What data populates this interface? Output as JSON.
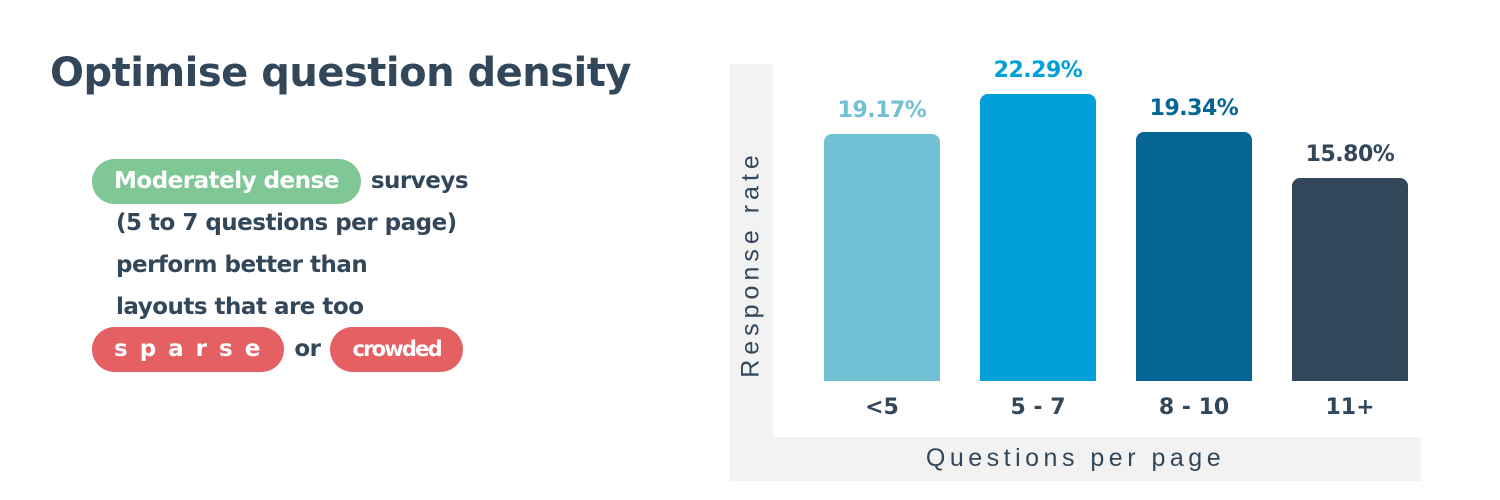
{
  "title": "Optimise question density",
  "description": {
    "highlight_good": "Moderately dense",
    "line1_rest": "surveys",
    "line2": "(5 to 7 questions per page)",
    "line3": "perform better than",
    "line4": "layouts that are too",
    "highlight_bad_1": "sparse",
    "connector": "or",
    "highlight_bad_2": "crowded"
  },
  "colors": {
    "text": "#33475b",
    "good_pill": "#7fc795",
    "bad_pill": "#e46063",
    "axis_band": "#f2f2f2"
  },
  "chart_data": {
    "type": "bar",
    "title": "",
    "xlabel": "Questions per page",
    "ylabel": "Response rate",
    "categories": [
      "<5",
      "5 - 7",
      "8 - 10",
      "11+"
    ],
    "values": [
      19.17,
      22.29,
      19.34,
      15.8
    ],
    "value_labels": [
      "19.17%",
      "22.29%",
      "19.34%",
      "15.80%"
    ],
    "bar_colors": [
      "#72c0d4",
      "#00a1db",
      "#056696",
      "#33475b"
    ],
    "label_colors": [
      "#72c0d4",
      "#00a1db",
      "#056696",
      "#33475b"
    ],
    "grid": false,
    "legend": null,
    "ylim": [
      0,
      22.29
    ]
  }
}
